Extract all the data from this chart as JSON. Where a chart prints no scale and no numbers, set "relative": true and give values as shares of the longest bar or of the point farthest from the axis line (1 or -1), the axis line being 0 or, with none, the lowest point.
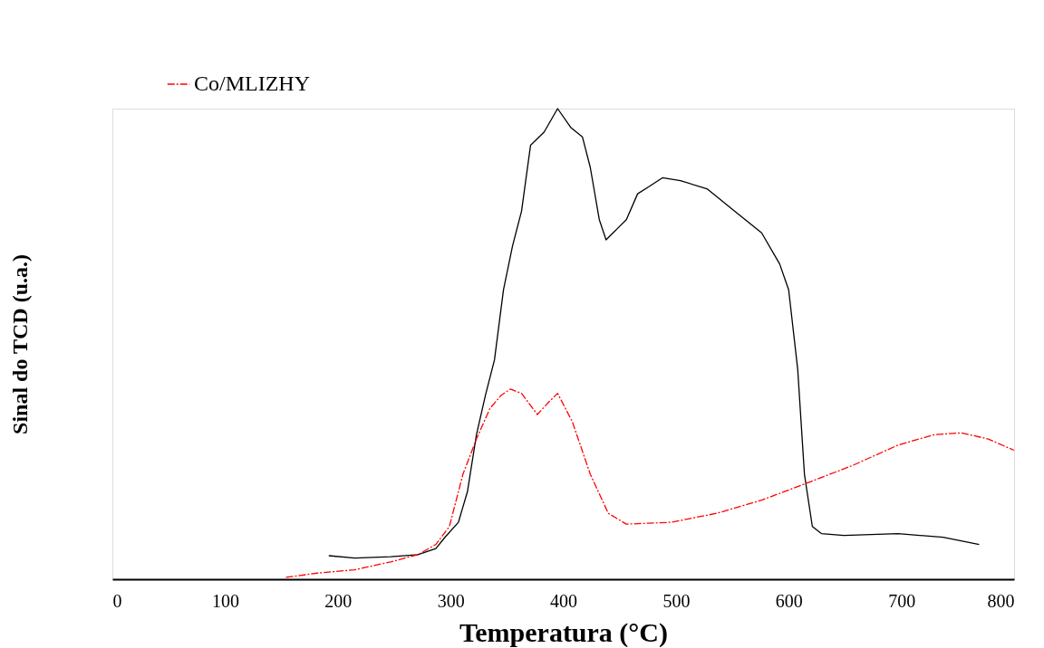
{
  "chart_data": {
    "type": "line",
    "xlabel": "Temperatura (°C)",
    "ylabel": "Sinal do TCD (u.a.)",
    "relative": true,
    "xlim": [
      0,
      800
    ],
    "xticks": [
      0,
      100,
      200,
      300,
      400,
      500,
      600,
      700,
      800
    ],
    "grid": false,
    "legend": "top left",
    "marker": "none",
    "series": [
      {
        "color": "#000000",
        "line_style": "solid",
        "x": [
          192,
          215,
          247,
          271,
          287,
          295,
          307,
          315,
          323,
          331,
          339,
          347,
          355,
          363,
          371,
          383,
          395,
          407,
          417,
          424,
          432,
          438,
          448,
          456,
          466,
          476,
          488,
          504,
          528,
          552,
          576,
          592,
          600,
          608,
          614,
          621,
          629,
          649,
          697,
          737,
          769
        ],
        "values": [
          0.05,
          0.045,
          0.048,
          0.052,
          0.065,
          0.089,
          0.121,
          0.186,
          0.307,
          0.391,
          0.466,
          0.615,
          0.708,
          0.782,
          0.922,
          0.95,
          1.0,
          0.959,
          0.94,
          0.875,
          0.764,
          0.721,
          0.745,
          0.764,
          0.819,
          0.834,
          0.853,
          0.847,
          0.829,
          0.782,
          0.736,
          0.67,
          0.615,
          0.447,
          0.223,
          0.112,
          0.097,
          0.093,
          0.097,
          0.089,
          0.074
        ]
      },
      {
        "name": "Co/MLIZHY",
        "color": "#ff0000",
        "line_style": "dashed",
        "x": [
          154,
          182,
          215,
          247,
          271,
          287,
          299,
          311,
          323,
          335,
          345,
          353,
          363,
          377,
          387,
          395,
          408,
          424,
          440,
          456,
          496,
          536,
          576,
          617,
          657,
          697,
          729,
          753,
          777,
          800
        ],
        "values": [
          0.004,
          0.013,
          0.02,
          0.037,
          0.052,
          0.074,
          0.112,
          0.223,
          0.298,
          0.363,
          0.391,
          0.404,
          0.395,
          0.35,
          0.376,
          0.395,
          0.335,
          0.223,
          0.14,
          0.117,
          0.121,
          0.14,
          0.168,
          0.205,
          0.242,
          0.285,
          0.307,
          0.311,
          0.298,
          0.274
        ]
      }
    ]
  }
}
